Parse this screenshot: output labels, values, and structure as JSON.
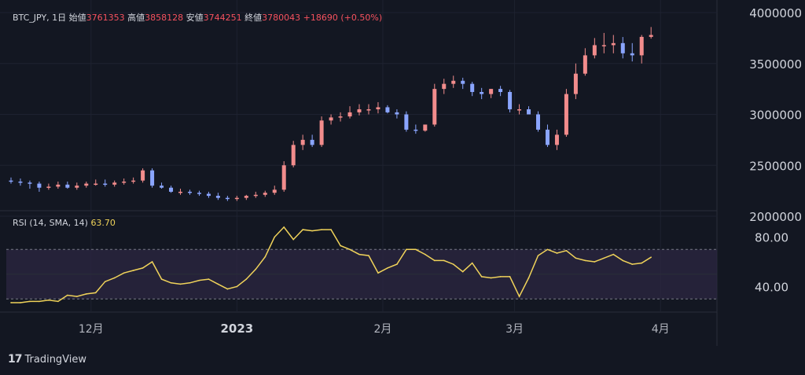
{
  "price_legend": {
    "symbol": "BTC_JPY, 1日",
    "open_label": "始値",
    "open": "3761353",
    "high_label": "高値",
    "high": "3858128",
    "low_label": "安値",
    "low": "3744251",
    "close_label": "終値",
    "close": "3780043",
    "change": "+18690 (+0.50%)"
  },
  "rsi_legend": {
    "label": "RSI (14, SMA, 14)",
    "value": "63.70"
  },
  "logo": {
    "mark": "17",
    "text": "TradingView"
  },
  "colors": {
    "background": "#131722",
    "up": "#f28c8c",
    "down": "#8aa5ff",
    "rsi_line": "#f0d35a",
    "rsi_band": "#2a2540",
    "grid": "#1e2230"
  },
  "chart_data": [
    {
      "type": "candlestick",
      "title": "BTC_JPY, 1日",
      "y_ticks": [
        "4000000",
        "3500000",
        "3000000",
        "2500000",
        "2000000"
      ],
      "ylim": [
        2000000,
        4000000
      ],
      "x_ticks": [
        "12月",
        "2023",
        "2月",
        "3月",
        "4月"
      ],
      "series": [
        {
          "x": [
            "2022-11-14",
            "2022-11-16",
            "2022-11-18",
            "2022-11-20",
            "2022-11-22",
            "2022-11-24",
            "2022-11-26",
            "2022-11-28",
            "2022-11-30",
            "2022-12-02",
            "2022-12-04",
            "2022-12-06",
            "2022-12-08",
            "2022-12-10",
            "2022-12-12",
            "2022-12-14",
            "2022-12-16",
            "2022-12-18",
            "2022-12-20",
            "2022-12-22",
            "2022-12-24",
            "2022-12-26",
            "2022-12-28",
            "2022-12-30",
            "2023-01-01",
            "2023-01-03",
            "2023-01-05",
            "2023-01-07",
            "2023-01-09",
            "2023-01-11",
            "2023-01-13",
            "2023-01-15",
            "2023-01-17",
            "2023-01-19",
            "2023-01-21",
            "2023-01-23",
            "2023-01-25",
            "2023-01-27",
            "2023-01-29",
            "2023-01-31",
            "2023-02-02",
            "2023-02-04",
            "2023-02-06",
            "2023-02-08",
            "2023-02-10",
            "2023-02-12",
            "2023-02-14",
            "2023-02-16",
            "2023-02-18",
            "2023-02-20",
            "2023-02-22",
            "2023-02-24",
            "2023-02-26",
            "2023-02-28",
            "2023-03-02",
            "2023-03-04",
            "2023-03-06",
            "2023-03-08",
            "2023-03-10",
            "2023-03-12",
            "2023-03-14",
            "2023-03-16",
            "2023-03-18",
            "2023-03-20",
            "2023-03-22",
            "2023-03-24",
            "2023-03-26",
            "2023-03-28",
            "2023-03-30"
          ],
          "open": [
            2350000,
            2340000,
            2330000,
            2320000,
            2280000,
            2290000,
            2310000,
            2280000,
            2300000,
            2320000,
            2320000,
            2310000,
            2330000,
            2340000,
            2350000,
            2450000,
            2300000,
            2280000,
            2240000,
            2240000,
            2230000,
            2220000,
            2200000,
            2180000,
            2170000,
            2180000,
            2200000,
            2210000,
            2230000,
            2260000,
            2500000,
            2700000,
            2750000,
            2700000,
            2940000,
            2970000,
            2980000,
            3020000,
            3050000,
            3050000,
            3070000,
            3020000,
            3000000,
            2850000,
            2840000,
            2900000,
            3250000,
            3300000,
            3330000,
            3300000,
            3220000,
            3200000,
            3250000,
            3220000,
            3050000,
            3050000,
            3000000,
            2850000,
            2700000,
            2800000,
            3200000,
            3400000,
            3580000,
            3680000,
            3680000,
            3700000,
            3600000,
            3580000,
            3761353
          ],
          "high": [
            2380000,
            2370000,
            2350000,
            2340000,
            2320000,
            2340000,
            2340000,
            2330000,
            2340000,
            2360000,
            2360000,
            2350000,
            2370000,
            2380000,
            2470000,
            2470000,
            2330000,
            2300000,
            2270000,
            2260000,
            2250000,
            2240000,
            2230000,
            2200000,
            2200000,
            2210000,
            2240000,
            2250000,
            2300000,
            2540000,
            2740000,
            2800000,
            2800000,
            2980000,
            3000000,
            3020000,
            3080000,
            3100000,
            3100000,
            3120000,
            3090000,
            3050000,
            3030000,
            2900000,
            2900000,
            3300000,
            3350000,
            3380000,
            3360000,
            3320000,
            3260000,
            3250000,
            3280000,
            3240000,
            3100000,
            3080000,
            3030000,
            2900000,
            2850000,
            3250000,
            3500000,
            3650000,
            3750000,
            3800000,
            3780000,
            3760000,
            3700000,
            3780000,
            3858128
          ],
          "low": [
            2320000,
            2300000,
            2270000,
            2240000,
            2260000,
            2270000,
            2270000,
            2260000,
            2280000,
            2300000,
            2290000,
            2290000,
            2310000,
            2320000,
            2330000,
            2280000,
            2270000,
            2230000,
            2210000,
            2210000,
            2200000,
            2180000,
            2160000,
            2150000,
            2150000,
            2160000,
            2180000,
            2190000,
            2210000,
            2240000,
            2480000,
            2650000,
            2680000,
            2680000,
            2900000,
            2930000,
            2960000,
            2990000,
            3000000,
            3010000,
            3010000,
            2960000,
            2830000,
            2810000,
            2830000,
            2880000,
            3200000,
            3260000,
            3250000,
            3180000,
            3150000,
            3160000,
            3180000,
            3020000,
            3000000,
            3000000,
            2830000,
            2680000,
            2650000,
            2780000,
            3150000,
            3380000,
            3550000,
            3600000,
            3600000,
            3550000,
            3520000,
            3500000,
            3744251
          ],
          "close": [
            2340000,
            2330000,
            2320000,
            2280000,
            2290000,
            2310000,
            2280000,
            2300000,
            2320000,
            2320000,
            2310000,
            2330000,
            2340000,
            2350000,
            2450000,
            2300000,
            2280000,
            2240000,
            2240000,
            2230000,
            2220000,
            2200000,
            2180000,
            2170000,
            2180000,
            2200000,
            2210000,
            2230000,
            2260000,
            2500000,
            2700000,
            2750000,
            2700000,
            2940000,
            2970000,
            2980000,
            3020000,
            3050000,
            3050000,
            3070000,
            3020000,
            3000000,
            2850000,
            2840000,
            2900000,
            3250000,
            3300000,
            3330000,
            3300000,
            3220000,
            3200000,
            3250000,
            3220000,
            3050000,
            3050000,
            3000000,
            2850000,
            2700000,
            2800000,
            3200000,
            3400000,
            3580000,
            3680000,
            3680000,
            3700000,
            3600000,
            3580000,
            3761353,
            3780043
          ]
        }
      ]
    },
    {
      "type": "line",
      "title": "RSI (14, SMA, 14)",
      "y_ticks": [
        "80.00",
        "40.00"
      ],
      "ylim": [
        20,
        100
      ],
      "band": [
        70,
        30
      ],
      "series": [
        {
          "name": "RSI",
          "x": [
            "2022-11-14",
            "2022-11-16",
            "2022-11-18",
            "2022-11-20",
            "2022-11-22",
            "2022-11-24",
            "2022-11-26",
            "2022-11-28",
            "2022-11-30",
            "2022-12-02",
            "2022-12-04",
            "2022-12-06",
            "2022-12-08",
            "2022-12-10",
            "2022-12-12",
            "2022-12-14",
            "2022-12-16",
            "2022-12-18",
            "2022-12-20",
            "2022-12-22",
            "2022-12-24",
            "2022-12-26",
            "2022-12-28",
            "2022-12-30",
            "2023-01-01",
            "2023-01-03",
            "2023-01-05",
            "2023-01-07",
            "2023-01-09",
            "2023-01-11",
            "2023-01-13",
            "2023-01-15",
            "2023-01-17",
            "2023-01-19",
            "2023-01-21",
            "2023-01-23",
            "2023-01-25",
            "2023-01-27",
            "2023-01-29",
            "2023-01-31",
            "2023-02-02",
            "2023-02-04",
            "2023-02-06",
            "2023-02-08",
            "2023-02-10",
            "2023-02-12",
            "2023-02-14",
            "2023-02-16",
            "2023-02-18",
            "2023-02-20",
            "2023-02-22",
            "2023-02-24",
            "2023-02-26",
            "2023-02-28",
            "2023-03-02",
            "2023-03-04",
            "2023-03-06",
            "2023-03-08",
            "2023-03-10",
            "2023-03-12",
            "2023-03-14",
            "2023-03-16",
            "2023-03-18",
            "2023-03-20",
            "2023-03-22",
            "2023-03-24",
            "2023-03-26",
            "2023-03-28",
            "2023-03-30"
          ],
          "values": [
            27,
            27,
            28,
            28,
            29,
            28,
            33,
            32,
            34,
            35,
            44,
            47,
            51,
            53,
            55,
            60,
            46,
            43,
            42,
            43,
            45,
            46,
            42,
            38,
            40,
            46,
            54,
            64,
            80,
            88,
            78,
            86,
            85,
            86,
            86,
            73,
            70,
            66,
            65,
            51,
            55,
            58,
            70,
            70,
            66,
            61,
            61,
            58,
            52,
            59,
            48,
            47,
            48,
            48,
            32,
            47,
            65,
            70,
            67,
            69,
            63,
            61,
            60,
            63,
            66,
            61,
            58,
            59,
            63.7
          ]
        }
      ]
    }
  ]
}
